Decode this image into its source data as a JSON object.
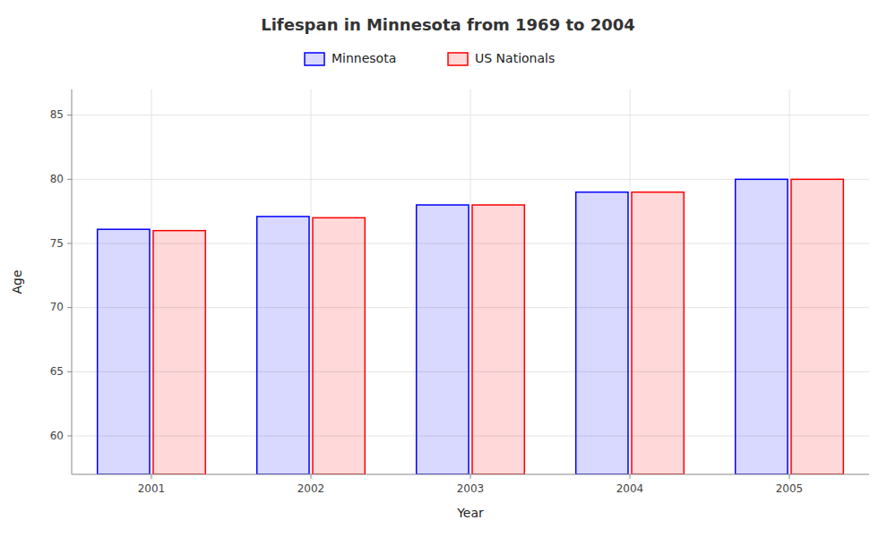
{
  "chart_data": {
    "type": "bar",
    "title": "Lifespan in Minnesota from 1969 to 2004",
    "x_label": "Year",
    "y_label": "Age",
    "categories": [
      "2001",
      "2002",
      "2003",
      "2004",
      "2005"
    ],
    "series": [
      {
        "name": "Minnesota",
        "color": "#0000ff",
        "values": [
          76.1,
          77.1,
          78.0,
          79.0,
          80.0
        ]
      },
      {
        "name": "US Nationals",
        "color": "#ff0000",
        "values": [
          76.0,
          77.0,
          78.0,
          79.0,
          80.0
        ]
      }
    ],
    "ylim": [
      57,
      87
    ],
    "yticks": [
      60,
      65,
      70,
      75,
      80,
      85
    ],
    "grid": true,
    "legend": "top"
  }
}
